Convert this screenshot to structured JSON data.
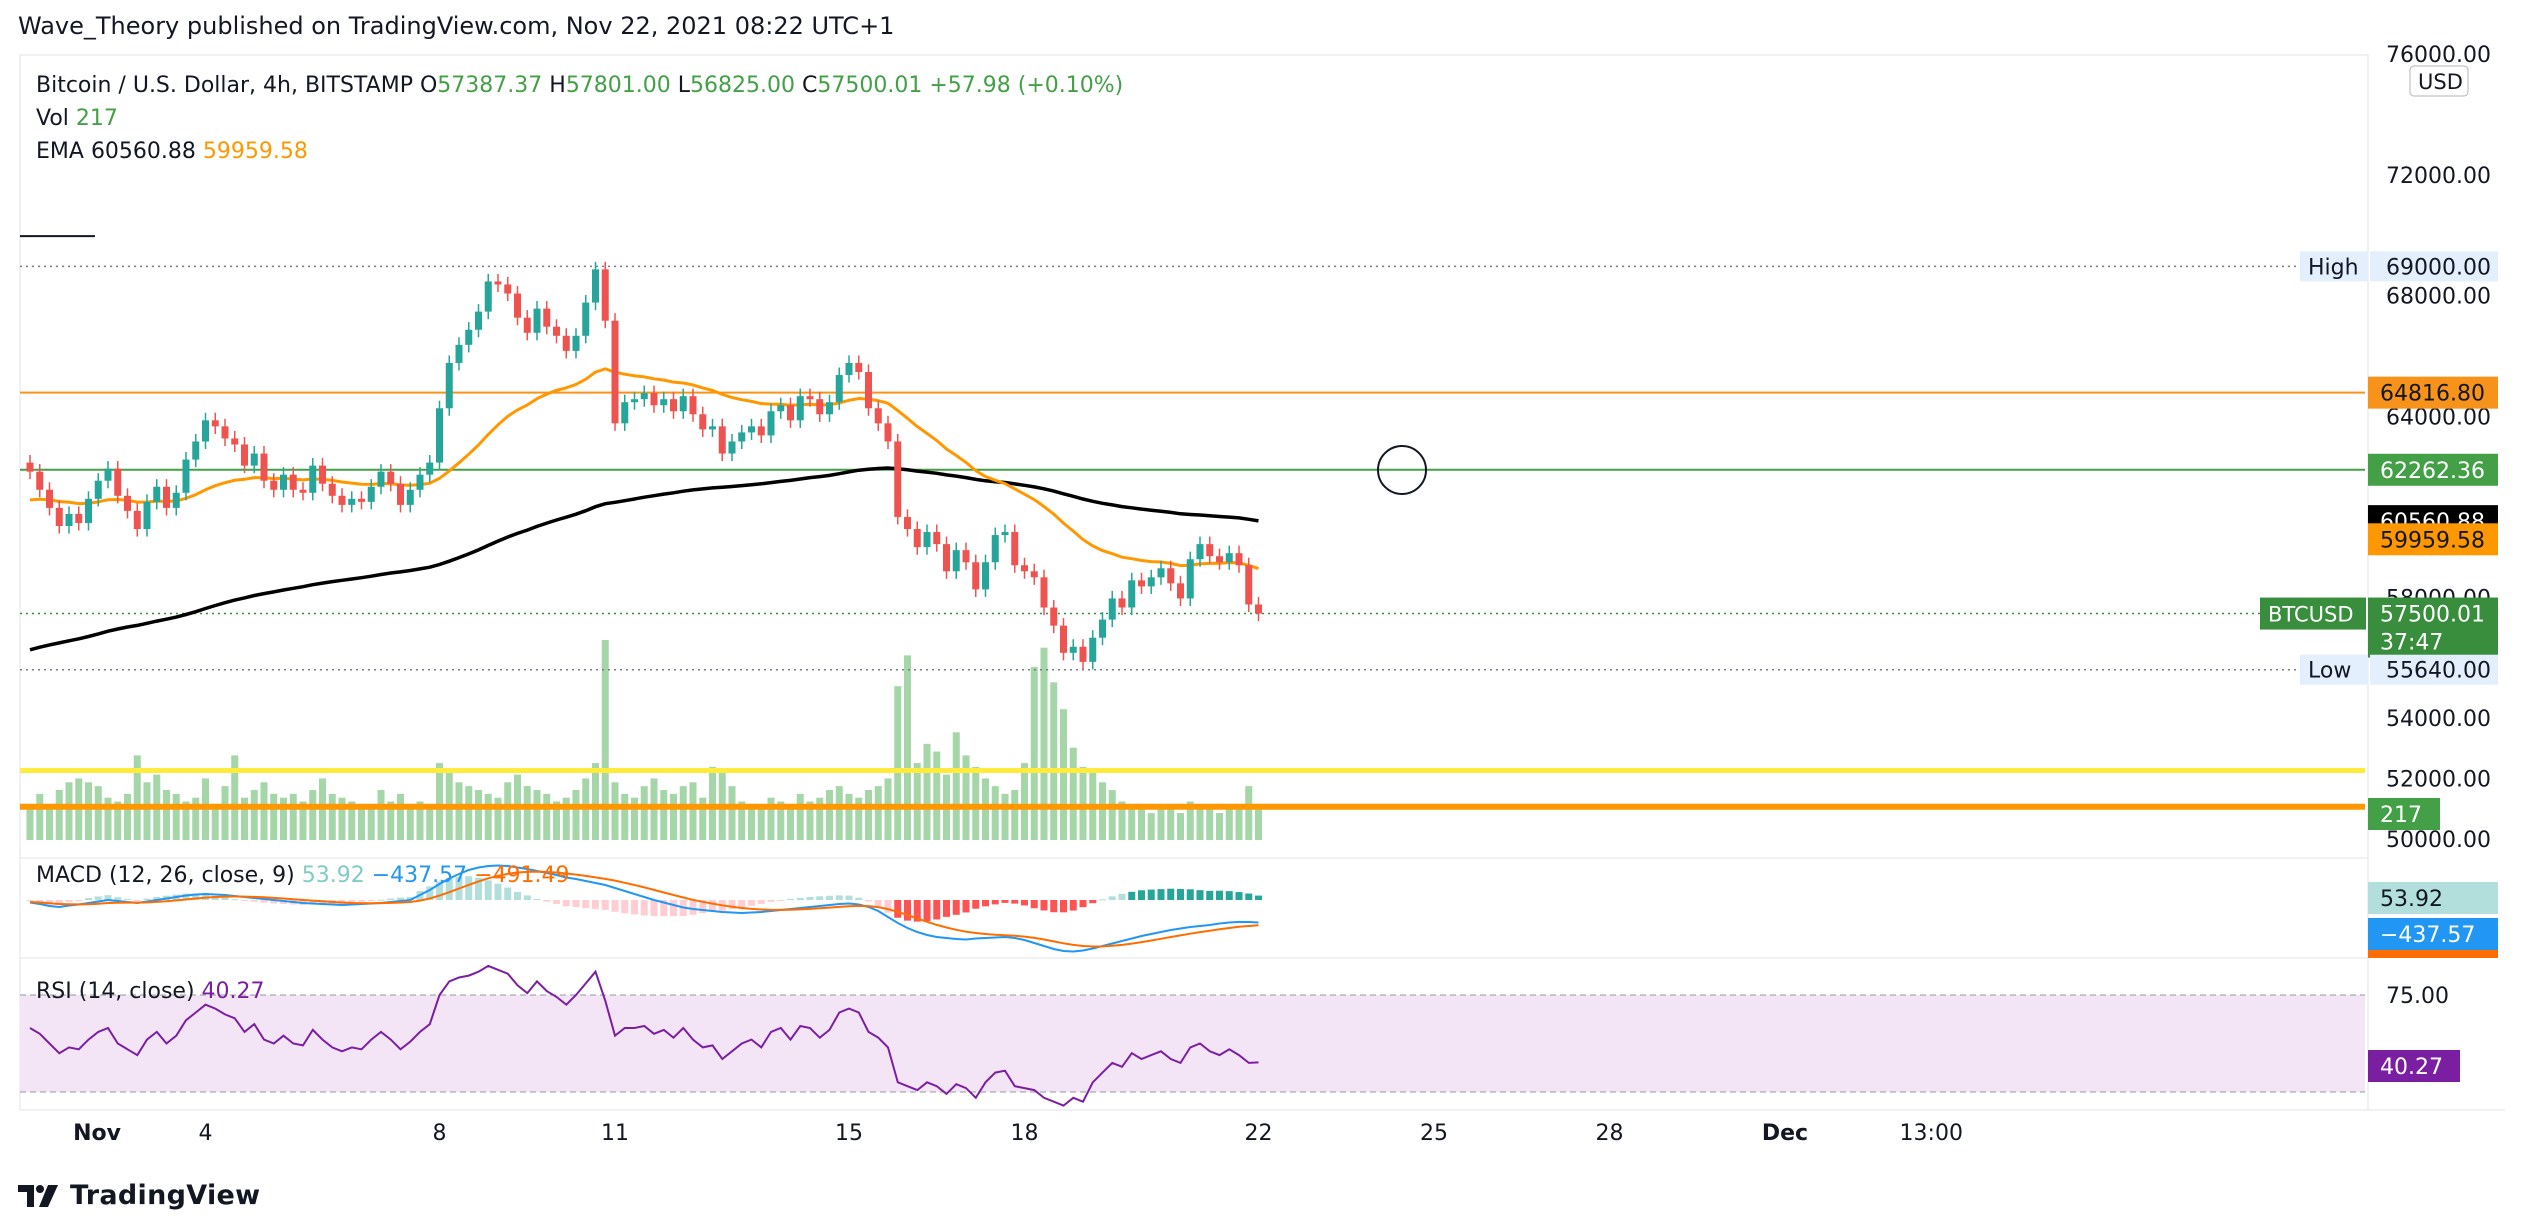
{
  "publisher": "Wave_Theory published on TradingView.com, Nov 22, 2021 08:22 UTC+1",
  "footer_brand": "TradingView",
  "chart_data": {
    "type": "candlestick",
    "symbol_info": {
      "title": "Bitcoin / U.S. Dollar, 4h, BITSTAMP",
      "o_label": "O",
      "o_value": "57387.37",
      "h_label": "H",
      "h_value": "57801.00",
      "l_label": "L",
      "l_value": "56825.00",
      "c_label": "C",
      "c_value": "57500.01",
      "change": "+57.98 (+0.10%)"
    },
    "vol_legend": {
      "label": "Vol",
      "value": "217"
    },
    "ema_legend": {
      "label": "EMA",
      "value1": "60560.88",
      "value2": "59959.58"
    },
    "macd_legend": {
      "label": "MACD (12, 26, close, 9)",
      "hist": "53.92",
      "macd": "−437.57",
      "signal": "−491.49"
    },
    "rsi_legend": {
      "label": "RSI (14, close)",
      "value": "40.27"
    },
    "currency": "USD",
    "price_axis": {
      "ticks": [
        {
          "value": 76000,
          "label": "76000.00"
        },
        {
          "value": 72000,
          "label": "72000.00"
        },
        {
          "value": 68000,
          "label": "68000.00"
        },
        {
          "value": 64000,
          "label": "64000.00"
        },
        {
          "value": 58000,
          "label": "58000.00"
        },
        {
          "value": 54000,
          "label": "54000.00"
        },
        {
          "value": 52000,
          "label": "52000.00"
        },
        {
          "value": 50000,
          "label": "50000.00"
        }
      ]
    },
    "x_axis": {
      "ticks": [
        {
          "index": 0,
          "label": "Nov"
        },
        {
          "index": 18,
          "label": "4"
        },
        {
          "index": 42,
          "label": "8"
        },
        {
          "index": 60,
          "label": "11"
        },
        {
          "index": 84,
          "label": "15"
        },
        {
          "index": 102,
          "label": "18"
        },
        {
          "index": 126,
          "label": "22"
        },
        {
          "index": 144,
          "label": "25"
        },
        {
          "index": 162,
          "label": "28"
        },
        {
          "index": 180,
          "label": "Dec"
        },
        {
          "index": 195,
          "label": "13:00"
        }
      ]
    },
    "price_labels": [
      {
        "name": "high",
        "text": "High",
        "value": "69000.00"
      },
      {
        "name": "level-orange",
        "value": "64816.80",
        "color": "#f7931a"
      },
      {
        "name": "level-green",
        "value": "62262.36",
        "color": "#43a047"
      },
      {
        "name": "ema-black",
        "value": "60560.88",
        "color": "#000000"
      },
      {
        "name": "ema-orange",
        "value": "59959.58",
        "color": "#ff9800"
      },
      {
        "name": "last",
        "text": "BTCUSD",
        "value": "57500.01",
        "countdown": "37:47",
        "color": "#388e3c"
      },
      {
        "name": "low",
        "text": "Low",
        "value": "55640.00"
      }
    ],
    "horizontal_lines": [
      {
        "name": "resistance-orange",
        "price": 64816.8,
        "color": "#f7931a"
      },
      {
        "name": "support-green",
        "price": 62262.36,
        "color": "#43a047"
      },
      {
        "name": "high-dotted",
        "price": 69000,
        "color": "#787b86"
      },
      {
        "name": "low-dotted",
        "price": 55640,
        "color": "#787b86"
      },
      {
        "name": "last-dotted",
        "price": 57500.01,
        "color": "#388e3c"
      },
      {
        "name": "yellow-line",
        "price": 52300,
        "color": "#ffeb3b"
      },
      {
        "name": "orange-thick-line",
        "price": 51100,
        "color": "#ff9800"
      }
    ],
    "volume_label": "217",
    "macd_axis": [
      {
        "label": "53.92",
        "color": "#b2dfdb"
      },
      {
        "label": "−437.57",
        "color": "#2196f3"
      }
    ],
    "rsi_axis": [
      {
        "label": "75.00"
      },
      {
        "label": "40.27",
        "color": "#7b1fa2"
      }
    ],
    "rsi_levels": {
      "upper": 75,
      "lower": 25
    },
    "closes": [
      62200,
      61600,
      61000,
      60400,
      60800,
      60500,
      61300,
      61900,
      62300,
      61400,
      60900,
      60300,
      61200,
      61700,
      61000,
      61500,
      62600,
      63200,
      63900,
      63700,
      63300,
      63100,
      62400,
      62800,
      61900,
      61600,
      62100,
      61600,
      61500,
      62400,
      61800,
      61400,
      61100,
      61300,
      61200,
      61700,
      62200,
      61800,
      61100,
      61600,
      62100,
      62500,
      64300,
      65800,
      66400,
      66900,
      67500,
      68500,
      68400,
      68100,
      67300,
      66800,
      67600,
      67000,
      66700,
      66200,
      66700,
      67800,
      68900,
      67200,
      63800,
      64500,
      64600,
      64800,
      64400,
      64600,
      64200,
      64700,
      64100,
      63600,
      63700,
      62800,
      63200,
      63500,
      63700,
      63400,
      64200,
      64400,
      63900,
      64700,
      64600,
      64100,
      64500,
      65400,
      65800,
      65500,
      64300,
      63800,
      63200,
      60700,
      60300,
      59700,
      60200,
      59800,
      58900,
      59600,
      59200,
      58300,
      59200,
      60100,
      60200,
      59100,
      58900,
      58700,
      57700,
      57100,
      56200,
      56400,
      55900,
      56700,
      57300,
      58000,
      57700,
      58600,
      58400,
      58700,
      59000,
      58500,
      58000,
      59300,
      59800,
      59400,
      59200,
      59500,
      59100,
      57800,
      57500
    ],
    "volumes": [
      90,
      120,
      80,
      130,
      150,
      160,
      150,
      140,
      110,
      100,
      120,
      220,
      150,
      170,
      130,
      120,
      100,
      110,
      160,
      90,
      140,
      220,
      110,
      130,
      150,
      120,
      110,
      120,
      100,
      130,
      160,
      120,
      110,
      100,
      90,
      80,
      130,
      100,
      120,
      90,
      100,
      90,
      200,
      180,
      150,
      140,
      130,
      120,
      110,
      150,
      170,
      140,
      130,
      120,
      100,
      110,
      130,
      160,
      200,
      520,
      150,
      120,
      110,
      140,
      160,
      130,
      120,
      140,
      150,
      110,
      190,
      180,
      140,
      100,
      90,
      80,
      110,
      100,
      90,
      120,
      100,
      110,
      130,
      140,
      120,
      110,
      130,
      140,
      160,
      400,
      480,
      200,
      250,
      230,
      170,
      280,
      220,
      190,
      160,
      140,
      120,
      130,
      200,
      450,
      500,
      410,
      340,
      240,
      190,
      180,
      150,
      130,
      100,
      90,
      80,
      70,
      90,
      80,
      70,
      100,
      90,
      80,
      70,
      90,
      80,
      140,
      80
    ],
    "macd_line": [
      -50,
      -80,
      -120,
      -140,
      -110,
      -90,
      -60,
      -30,
      0,
      -20,
      -40,
      -60,
      -30,
      0,
      30,
      60,
      90,
      110,
      120,
      110,
      100,
      80,
      60,
      40,
      20,
      0,
      -20,
      -40,
      -60,
      -70,
      -80,
      -90,
      -100,
      -90,
      -80,
      -70,
      -60,
      -40,
      -20,
      0,
      100,
      200,
      320,
      430,
      520,
      600,
      650,
      680,
      690,
      680,
      650,
      620,
      580,
      540,
      500,
      450,
      420,
      380,
      340,
      300,
      240,
      180,
      120,
      60,
      0,
      -50,
      -100,
      -150,
      -180,
      -200,
      -220,
      -240,
      -250,
      -260,
      -250,
      -240,
      -220,
      -200,
      -180,
      -160,
      -140,
      -120,
      -100,
      -80,
      -70,
      -90,
      -140,
      -220,
      -340,
      -460,
      -560,
      -640,
      -700,
      -740,
      -760,
      -780,
      -790,
      -770,
      -760,
      -750,
      -740,
      -760,
      -800,
      -860,
      -920,
      -980,
      -1020,
      -1030,
      -1010,
      -970,
      -920,
      -870,
      -820,
      -770,
      -720,
      -680,
      -640,
      -600,
      -570,
      -540,
      -520,
      -500,
      -470,
      -450,
      -437,
      -440,
      -450
    ],
    "signal_line": [
      -40,
      -50,
      -65,
      -80,
      -85,
      -88,
      -85,
      -75,
      -60,
      -55,
      -52,
      -53,
      -48,
      -38,
      -24,
      -8,
      10,
      30,
      48,
      60,
      68,
      70,
      68,
      62,
      54,
      43,
      30,
      16,
      1,
      -13,
      -26,
      -39,
      -51,
      -59,
      -63,
      -64,
      -63,
      -58,
      -50,
      -40,
      -12,
      30,
      88,
      156,
      229,
      303,
      372,
      434,
      485,
      524,
      549,
      563,
      567,
      561,
      549,
      529,
      507,
      482,
      453,
      423,
      387,
      345,
      300,
      252,
      202,
      151,
      101,
      51,
      5,
      -36,
      -73,
      -106,
      -135,
      -160,
      -178,
      -191,
      -197,
      -198,
      -194,
      -187,
      -177,
      -166,
      -153,
      -138,
      -125,
      -118,
      -122,
      -142,
      -182,
      -238,
      -302,
      -370,
      -436,
      -497,
      -549,
      -595,
      -634,
      -661,
      -681,
      -695,
      -704,
      -715,
      -732,
      -757,
      -789,
      -827,
      -866,
      -898,
      -920,
      -930,
      -928,
      -916,
      -897,
      -872,
      -842,
      -810,
      -776,
      -741,
      -707,
      -674,
      -643,
      -614,
      -586,
      -561,
      -536,
      -521,
      -505
    ],
    "rsi": [
      58,
      55,
      50,
      45,
      48,
      47,
      52,
      56,
      58,
      50,
      47,
      44,
      52,
      56,
      50,
      54,
      62,
      66,
      70,
      68,
      65,
      63,
      56,
      60,
      52,
      50,
      54,
      50,
      49,
      57,
      52,
      48,
      46,
      48,
      47,
      52,
      56,
      52,
      47,
      51,
      56,
      60,
      75,
      82,
      84,
      85,
      87,
      90,
      88,
      86,
      80,
      76,
      82,
      77,
      74,
      70,
      75,
      81,
      87,
      72,
      54,
      58,
      58,
      59,
      55,
      57,
      53,
      58,
      52,
      48,
      49,
      42,
      46,
      50,
      52,
      48,
      56,
      58,
      52,
      59,
      58,
      53,
      57,
      66,
      68,
      66,
      56,
      53,
      48,
      30,
      28,
      26,
      30,
      28,
      24,
      29,
      27,
      22,
      30,
      35,
      36,
      28,
      27,
      26,
      22,
      20,
      18,
      22,
      20,
      30,
      35,
      40,
      38,
      45,
      42,
      44,
      46,
      42,
      40,
      48,
      50,
      46,
      44,
      47,
      44,
      40,
      40.27
    ]
  }
}
